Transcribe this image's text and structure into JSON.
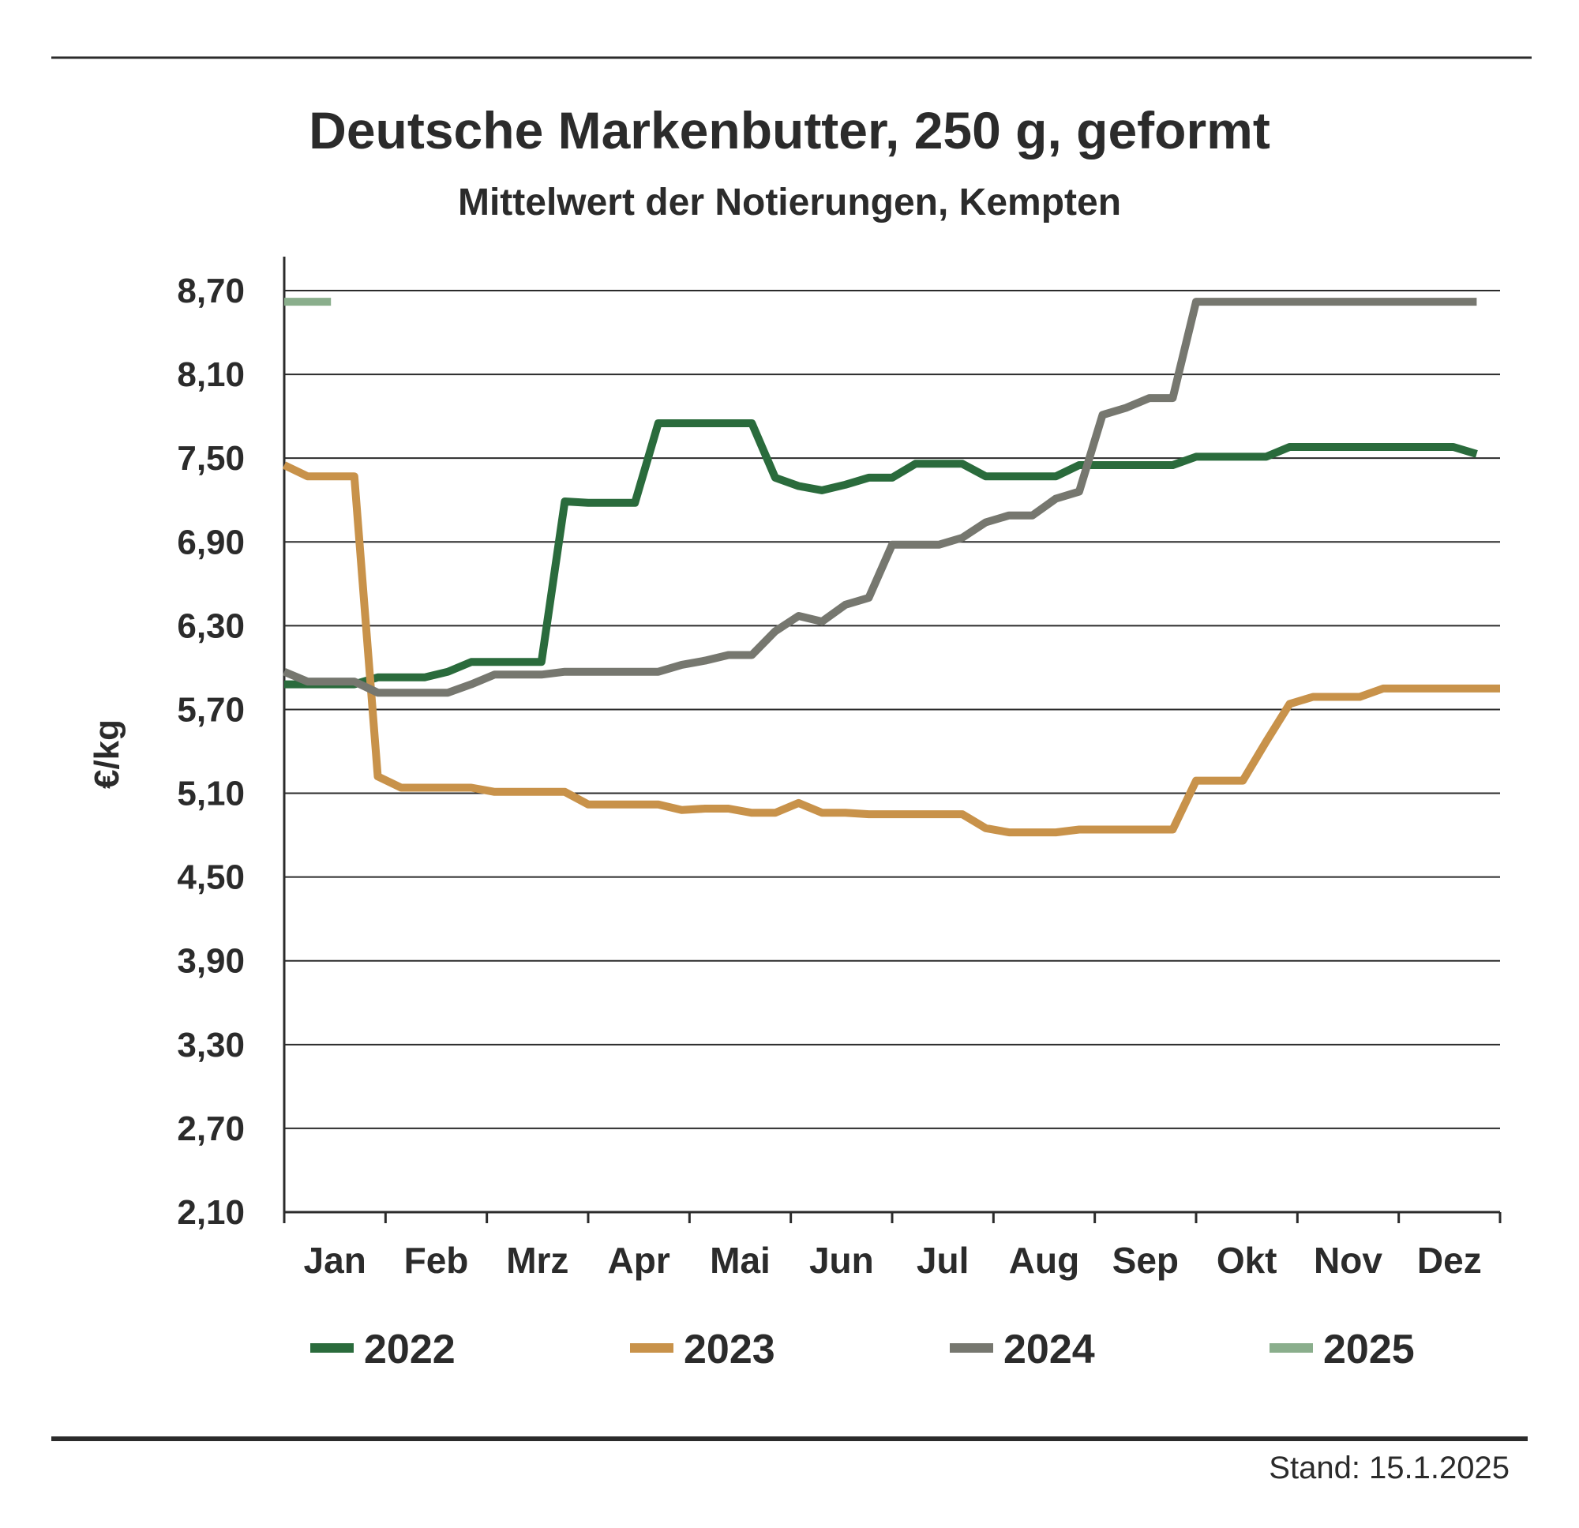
{
  "chart_data": {
    "type": "line",
    "title": "Deutsche Markenbutter, 250 g, geformt",
    "subtitle": "Mittelwert der Notierungen, Kempten",
    "ylabel": "€/kg",
    "xlabel": "",
    "ylim": [
      2.1,
      8.7
    ],
    "yticks": [
      "8,70",
      "8,10",
      "7,50",
      "6,90",
      "6,30",
      "5,70",
      "5,10",
      "4,50",
      "3,90",
      "3,30",
      "2,70",
      "2,10"
    ],
    "ytick_values": [
      8.7,
      8.1,
      7.5,
      6.9,
      6.3,
      5.7,
      5.1,
      4.5,
      3.9,
      3.3,
      2.7,
      2.1
    ],
    "categories": [
      "Jan",
      "Feb",
      "Mrz",
      "Apr",
      "Mai",
      "Jun",
      "Jul",
      "Aug",
      "Sep",
      "Okt",
      "Nov",
      "Dez"
    ],
    "x_unit": "week of year",
    "xlim": [
      1,
      53
    ],
    "grid": "horizontal",
    "legend_position": "bottom",
    "footnote": "Stand: 15.1.2025",
    "series": [
      {
        "name": "2022",
        "color": "#2a6b3c",
        "points": [
          [
            1,
            5.88
          ],
          [
            2,
            5.88
          ],
          [
            3,
            5.88
          ],
          [
            4,
            5.88
          ],
          [
            5,
            5.93
          ],
          [
            6,
            5.93
          ],
          [
            7,
            5.93
          ],
          [
            8,
            5.97
          ],
          [
            9,
            6.04
          ],
          [
            10,
            6.04
          ],
          [
            11,
            6.04
          ],
          [
            12,
            6.04
          ],
          [
            13,
            7.19
          ],
          [
            14,
            7.18
          ],
          [
            15,
            7.18
          ],
          [
            16,
            7.18
          ],
          [
            17,
            7.75
          ],
          [
            18,
            7.75
          ],
          [
            19,
            7.75
          ],
          [
            20,
            7.75
          ],
          [
            21,
            7.75
          ],
          [
            22,
            7.36
          ],
          [
            23,
            7.3
          ],
          [
            24,
            7.27
          ],
          [
            25,
            7.31
          ],
          [
            26,
            7.36
          ],
          [
            27,
            7.36
          ],
          [
            28,
            7.46
          ],
          [
            29,
            7.46
          ],
          [
            30,
            7.46
          ],
          [
            31,
            7.37
          ],
          [
            32,
            7.37
          ],
          [
            33,
            7.37
          ],
          [
            34,
            7.37
          ],
          [
            35,
            7.45
          ],
          [
            36,
            7.45
          ],
          [
            37,
            7.45
          ],
          [
            38,
            7.45
          ],
          [
            39,
            7.45
          ],
          [
            40,
            7.51
          ],
          [
            41,
            7.51
          ],
          [
            42,
            7.51
          ],
          [
            43,
            7.51
          ],
          [
            44,
            7.58
          ],
          [
            45,
            7.58
          ],
          [
            46,
            7.58
          ],
          [
            47,
            7.58
          ],
          [
            48,
            7.58
          ],
          [
            49,
            7.58
          ],
          [
            50,
            7.58
          ],
          [
            51,
            7.58
          ],
          [
            52,
            7.53
          ]
        ]
      },
      {
        "name": "2023",
        "color": "#c8924a",
        "points": [
          [
            1,
            7.45
          ],
          [
            2,
            7.37
          ],
          [
            3,
            7.37
          ],
          [
            4,
            7.37
          ],
          [
            5,
            5.22
          ],
          [
            6,
            5.14
          ],
          [
            7,
            5.14
          ],
          [
            8,
            5.14
          ],
          [
            9,
            5.14
          ],
          [
            10,
            5.11
          ],
          [
            11,
            5.11
          ],
          [
            12,
            5.11
          ],
          [
            13,
            5.11
          ],
          [
            14,
            5.02
          ],
          [
            15,
            5.02
          ],
          [
            16,
            5.02
          ],
          [
            17,
            5.02
          ],
          [
            18,
            4.98
          ],
          [
            19,
            4.99
          ],
          [
            20,
            4.99
          ],
          [
            21,
            4.96
          ],
          [
            22,
            4.96
          ],
          [
            23,
            5.03
          ],
          [
            24,
            4.96
          ],
          [
            25,
            4.96
          ],
          [
            26,
            4.95
          ],
          [
            27,
            4.95
          ],
          [
            28,
            4.95
          ],
          [
            29,
            4.95
          ],
          [
            30,
            4.95
          ],
          [
            31,
            4.85
          ],
          [
            32,
            4.82
          ],
          [
            33,
            4.82
          ],
          [
            34,
            4.82
          ],
          [
            35,
            4.84
          ],
          [
            36,
            4.84
          ],
          [
            37,
            4.84
          ],
          [
            38,
            4.84
          ],
          [
            39,
            4.84
          ],
          [
            40,
            5.19
          ],
          [
            41,
            5.19
          ],
          [
            42,
            5.19
          ],
          [
            43,
            5.47
          ],
          [
            44,
            5.74
          ],
          [
            45,
            5.79
          ],
          [
            46,
            5.79
          ],
          [
            47,
            5.79
          ],
          [
            48,
            5.85
          ],
          [
            49,
            5.85
          ],
          [
            50,
            5.85
          ],
          [
            51,
            5.85
          ],
          [
            52,
            5.85
          ],
          [
            53,
            5.85
          ]
        ]
      },
      {
        "name": "2024",
        "color": "#76776f",
        "points": [
          [
            1,
            5.97
          ],
          [
            2,
            5.9
          ],
          [
            3,
            5.9
          ],
          [
            4,
            5.9
          ],
          [
            5,
            5.82
          ],
          [
            6,
            5.82
          ],
          [
            7,
            5.82
          ],
          [
            8,
            5.82
          ],
          [
            9,
            5.88
          ],
          [
            10,
            5.95
          ],
          [
            11,
            5.95
          ],
          [
            12,
            5.95
          ],
          [
            13,
            5.97
          ],
          [
            14,
            5.97
          ],
          [
            15,
            5.97
          ],
          [
            16,
            5.97
          ],
          [
            17,
            5.97
          ],
          [
            18,
            6.02
          ],
          [
            19,
            6.05
          ],
          [
            20,
            6.09
          ],
          [
            21,
            6.09
          ],
          [
            22,
            6.26
          ],
          [
            23,
            6.37
          ],
          [
            24,
            6.33
          ],
          [
            25,
            6.45
          ],
          [
            26,
            6.5
          ],
          [
            27,
            6.88
          ],
          [
            28,
            6.88
          ],
          [
            29,
            6.88
          ],
          [
            30,
            6.93
          ],
          [
            31,
            7.04
          ],
          [
            32,
            7.09
          ],
          [
            33,
            7.09
          ],
          [
            34,
            7.21
          ],
          [
            35,
            7.26
          ],
          [
            36,
            7.81
          ],
          [
            37,
            7.86
          ],
          [
            38,
            7.93
          ],
          [
            39,
            7.93
          ],
          [
            40,
            8.62
          ],
          [
            41,
            8.62
          ],
          [
            42,
            8.62
          ],
          [
            43,
            8.62
          ],
          [
            44,
            8.62
          ],
          [
            45,
            8.62
          ],
          [
            46,
            8.62
          ],
          [
            47,
            8.62
          ],
          [
            48,
            8.62
          ],
          [
            49,
            8.62
          ],
          [
            50,
            8.62
          ],
          [
            51,
            8.62
          ],
          [
            52,
            8.62
          ]
        ]
      },
      {
        "name": "2025",
        "color": "#8aae8c",
        "points": [
          [
            1,
            8.62
          ],
          [
            2,
            8.62
          ],
          [
            3,
            8.62
          ]
        ]
      }
    ]
  }
}
